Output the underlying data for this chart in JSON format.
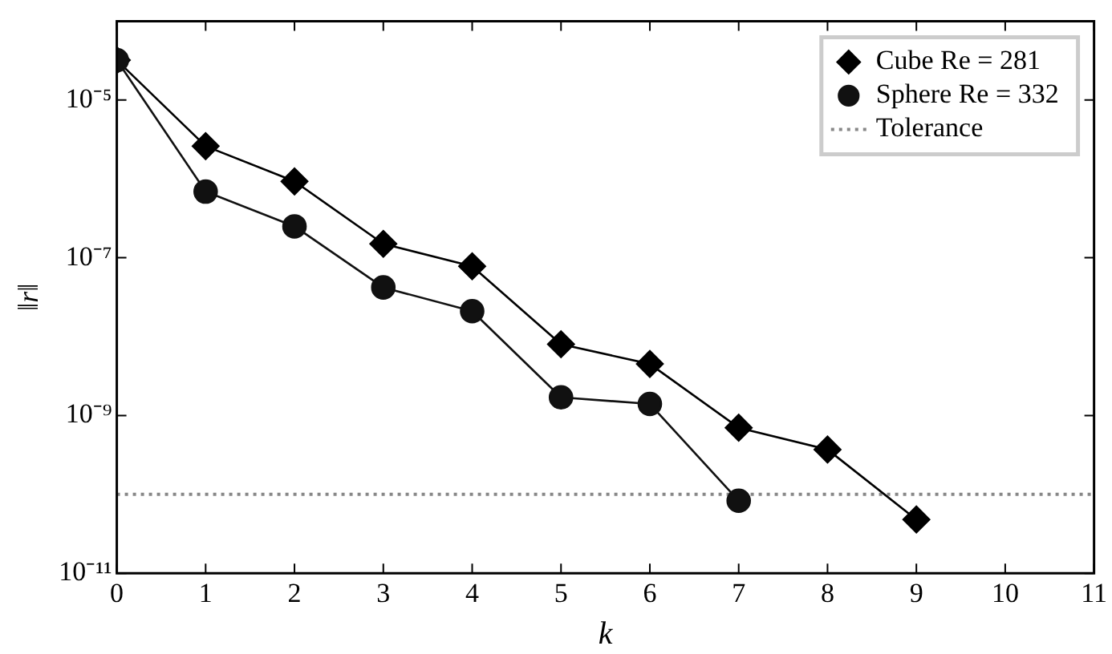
{
  "chart_data": {
    "type": "line",
    "xlabel": "k",
    "ylabel": "‖r‖",
    "log": "y",
    "line_style": "solid",
    "grid": false,
    "legend": "top right",
    "xlim": [
      0,
      11
    ],
    "xticks": [
      0,
      1,
      2,
      3,
      4,
      5,
      6,
      7,
      8,
      9,
      10,
      11
    ],
    "ylim": [
      1e-11,
      0.0001
    ],
    "yticks": [
      {
        "value": 1e-11,
        "label": "10⁻¹¹"
      },
      {
        "value": 1e-09,
        "label": "10⁻⁹"
      },
      {
        "value": 1e-07,
        "label": "10⁻⁷"
      },
      {
        "value": 1e-05,
        "label": "10⁻⁵"
      }
    ],
    "x": [
      0,
      1,
      2,
      3,
      4,
      5,
      6,
      7,
      8,
      9
    ],
    "series": [
      {
        "name": "Cube Re = 281",
        "color": "#000000",
        "marker": "diamond",
        "values": [
          3.2e-05,
          2.6e-06,
          9.3e-07,
          1.5e-07,
          7.8e-08,
          8e-09,
          4.5e-09,
          7e-10,
          3.7e-10,
          4.8e-11
        ]
      },
      {
        "name": "Sphere Re = 332",
        "color": "#111111",
        "marker": "circle",
        "values": [
          3.2e-05,
          6.9e-07,
          2.5e-07,
          4.2e-08,
          2.1e-08,
          1.7e-09,
          1.4e-09,
          8.3e-11,
          null,
          null
        ]
      }
    ],
    "ref_lines": [
      {
        "axis": "y",
        "value": 1e-10,
        "label": "Tolerance",
        "color": "#888888",
        "line_style": "dotted"
      }
    ]
  }
}
